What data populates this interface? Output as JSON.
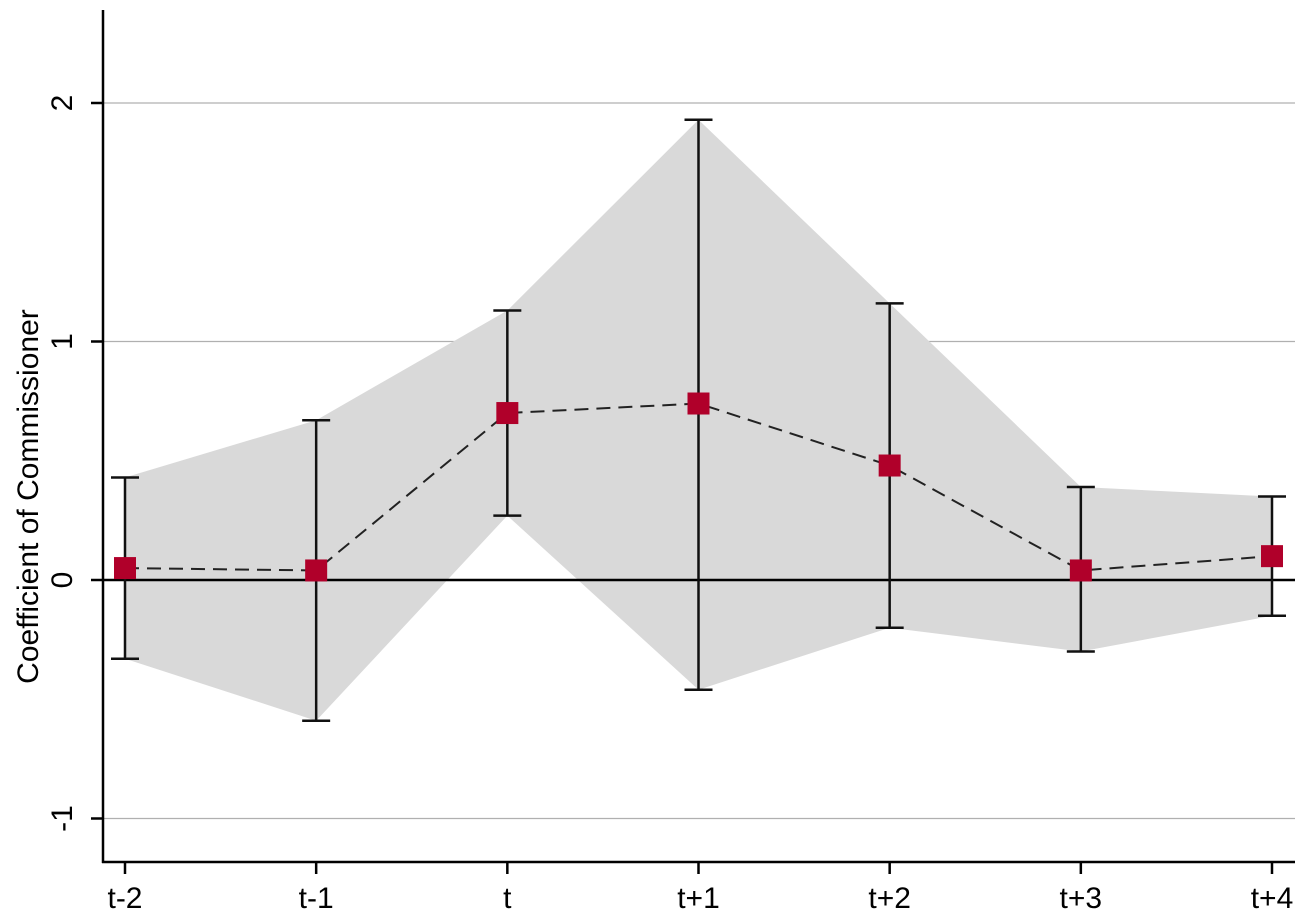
{
  "chart_data": {
    "type": "line",
    "title": "",
    "xlabel": "",
    "ylabel": "Coefficient of Commissioner",
    "categories": [
      "t-2",
      "t-1",
      "t",
      "t+1",
      "t+2",
      "t+3",
      "t+4"
    ],
    "series": [
      {
        "values": [
          0.05,
          0.04,
          0.7,
          0.74,
          0.48,
          0.04,
          0.1
        ],
        "lower": [
          -0.33,
          -0.59,
          0.27,
          -0.46,
          -0.2,
          -0.3,
          -0.15
        ],
        "upper": [
          0.43,
          0.67,
          1.13,
          1.93,
          1.16,
          0.39,
          0.35
        ],
        "marker_color": "#b0002a",
        "line_style": "dashed"
      }
    ],
    "yticks": [
      -1,
      0,
      1,
      2
    ],
    "ylim": [
      -1.17,
      2.4
    ],
    "reference_line_y": 0,
    "grid": true,
    "band_color": "#d9d9d9",
    "legend": "none"
  }
}
